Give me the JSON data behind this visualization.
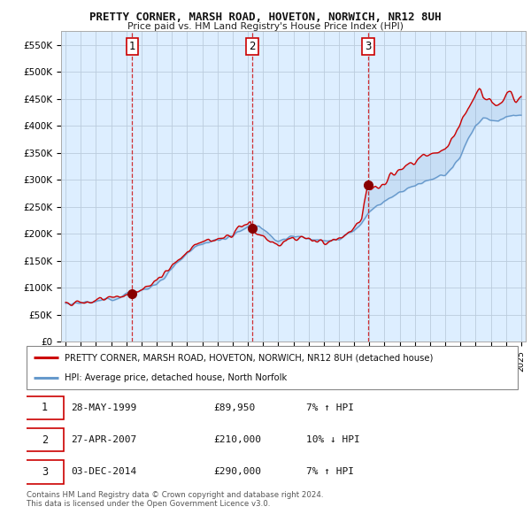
{
  "title": "PRETTY CORNER, MARSH ROAD, HOVETON, NORWICH, NR12 8UH",
  "subtitle": "Price paid vs. HM Land Registry's House Price Index (HPI)",
  "ylim": [
    0,
    575000
  ],
  "yticks": [
    0,
    50000,
    100000,
    150000,
    200000,
    250000,
    300000,
    350000,
    400000,
    450000,
    500000,
    550000
  ],
  "ytick_labels": [
    "£0",
    "£50K",
    "£100K",
    "£150K",
    "£200K",
    "£250K",
    "£300K",
    "£350K",
    "£400K",
    "£450K",
    "£500K",
    "£550K"
  ],
  "xlim_start": 1994.7,
  "xlim_end": 2025.3,
  "sales": [
    {
      "date_num": 1999.38,
      "price": 89950,
      "label": "1"
    },
    {
      "date_num": 2007.3,
      "price": 210000,
      "label": "2"
    },
    {
      "date_num": 2014.92,
      "price": 290000,
      "label": "3"
    }
  ],
  "sale_vline_color": "#cc0000",
  "sale_marker_color": "#880000",
  "hpi_line_color": "#6699cc",
  "price_line_color": "#cc0000",
  "chart_bg_color": "#ddeeff",
  "background_color": "#ffffff",
  "grid_color": "#bbccdd",
  "legend_entries": [
    "PRETTY CORNER, MARSH ROAD, HOVETON, NORWICH, NR12 8UH (detached house)",
    "HPI: Average price, detached house, North Norfolk"
  ],
  "table_rows": [
    {
      "num": "1",
      "date": "28-MAY-1999",
      "price": "£89,950",
      "hpi": "7% ↑ HPI"
    },
    {
      "num": "2",
      "date": "27-APR-2007",
      "price": "£210,000",
      "hpi": "10% ↓ HPI"
    },
    {
      "num": "3",
      "date": "03-DEC-2014",
      "price": "£290,000",
      "hpi": "7% ↑ HPI"
    }
  ],
  "footnote": "Contains HM Land Registry data © Crown copyright and database right 2024.\nThis data is licensed under the Open Government Licence v3.0."
}
